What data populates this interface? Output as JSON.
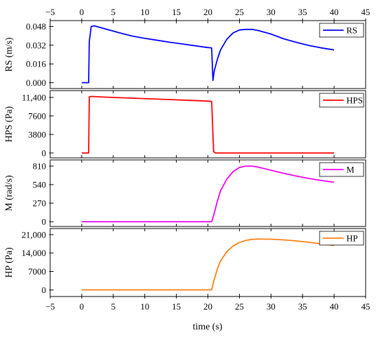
{
  "figure": {
    "xlabel": "time (s)",
    "x_ticks": [
      "−5",
      "0",
      "5",
      "10",
      "15",
      "20",
      "25",
      "30",
      "35",
      "40",
      "45"
    ],
    "xlim": [
      -5,
      45
    ]
  },
  "chart_data": [
    {
      "type": "line",
      "ylabel": "RS (m/s)",
      "ylim": [
        -0.005,
        0.053
      ],
      "y_ticks": [
        0.0,
        0.016,
        0.032,
        0.048
      ],
      "y_tick_labels": [
        "0.000",
        "0.016",
        "0.032",
        "0.048"
      ],
      "legend": "top-right",
      "grid": false,
      "series": [
        {
          "name": "RS",
          "color": "#0000ff",
          "x": [
            0,
            1.1,
            1.2,
            1.5,
            2,
            4,
            6,
            8,
            10,
            12,
            14,
            16,
            18,
            20,
            20.5,
            20.6,
            20.8,
            21,
            21.5,
            22,
            23,
            24,
            25,
            26,
            27,
            28,
            30,
            32,
            34,
            36,
            38,
            40
          ],
          "y": [
            0.0,
            0.0,
            0.035,
            0.048,
            0.0485,
            0.0455,
            0.0425,
            0.0398,
            0.0378,
            0.0362,
            0.0345,
            0.033,
            0.0315,
            0.03,
            0.0298,
            0.0295,
            0.002,
            0.01,
            0.02,
            0.028,
            0.037,
            0.0425,
            0.045,
            0.0455,
            0.0455,
            0.0445,
            0.0415,
            0.0375,
            0.0345,
            0.0318,
            0.0297,
            0.028
          ]
        }
      ]
    },
    {
      "type": "line",
      "ylabel": "HPS (Pa)",
      "ylim": [
        -1000,
        12800
      ],
      "y_ticks": [
        0,
        3800,
        7600,
        11400
      ],
      "y_tick_labels": [
        "0",
        "3800",
        "7600",
        "11,400"
      ],
      "legend": "top-right",
      "grid": false,
      "series": [
        {
          "name": "HPS",
          "color": "#ff0000",
          "x": [
            0,
            1.1,
            1.2,
            1.5,
            4,
            8,
            12,
            16,
            20,
            20.5,
            20.6,
            20.9,
            21.2,
            25,
            30,
            35,
            40
          ],
          "y": [
            0,
            0,
            11500,
            11600,
            11450,
            11250,
            11050,
            10850,
            10650,
            10600,
            10550,
            300,
            0,
            0,
            0,
            0,
            0
          ]
        }
      ]
    },
    {
      "type": "line",
      "ylabel": "M (rad/s)",
      "ylim": [
        -70,
        900
      ],
      "y_ticks": [
        0,
        270,
        540,
        810
      ],
      "y_tick_labels": [
        "0",
        "270",
        "540",
        "810"
      ],
      "legend": "top-right",
      "grid": false,
      "series": [
        {
          "name": "M",
          "color": "#ee00ee",
          "x": [
            0,
            5,
            10,
            15,
            20,
            20.6,
            21,
            21.5,
            22,
            23,
            24,
            25,
            26,
            27,
            28,
            30,
            32,
            34,
            36,
            38,
            40
          ],
          "y": [
            0,
            0,
            0,
            0,
            0,
            0,
            120,
            300,
            450,
            620,
            730,
            790,
            810,
            810,
            795,
            750,
            705,
            665,
            630,
            600,
            575
          ]
        }
      ]
    },
    {
      "type": "line",
      "ylabel": "HP (Pa)",
      "ylim": [
        -2500,
        23300
      ],
      "y_ticks": [
        0,
        7000,
        14000,
        21000
      ],
      "y_tick_labels": [
        "0",
        "7000",
        "14,000",
        "21,000"
      ],
      "legend": "top-right",
      "grid": false,
      "series": [
        {
          "name": "HP",
          "color": "#ff7f0e",
          "x": [
            0,
            5,
            10,
            15,
            20,
            20.6,
            21,
            21.5,
            22,
            23,
            24,
            25,
            26,
            27,
            28,
            30,
            32,
            34,
            36,
            38,
            40
          ],
          "y": [
            0,
            0,
            0,
            0,
            0,
            0,
            4000,
            8000,
            11000,
            14500,
            16700,
            18000,
            18800,
            19200,
            19300,
            19250,
            19000,
            18600,
            18100,
            17500,
            16900
          ]
        }
      ]
    }
  ]
}
